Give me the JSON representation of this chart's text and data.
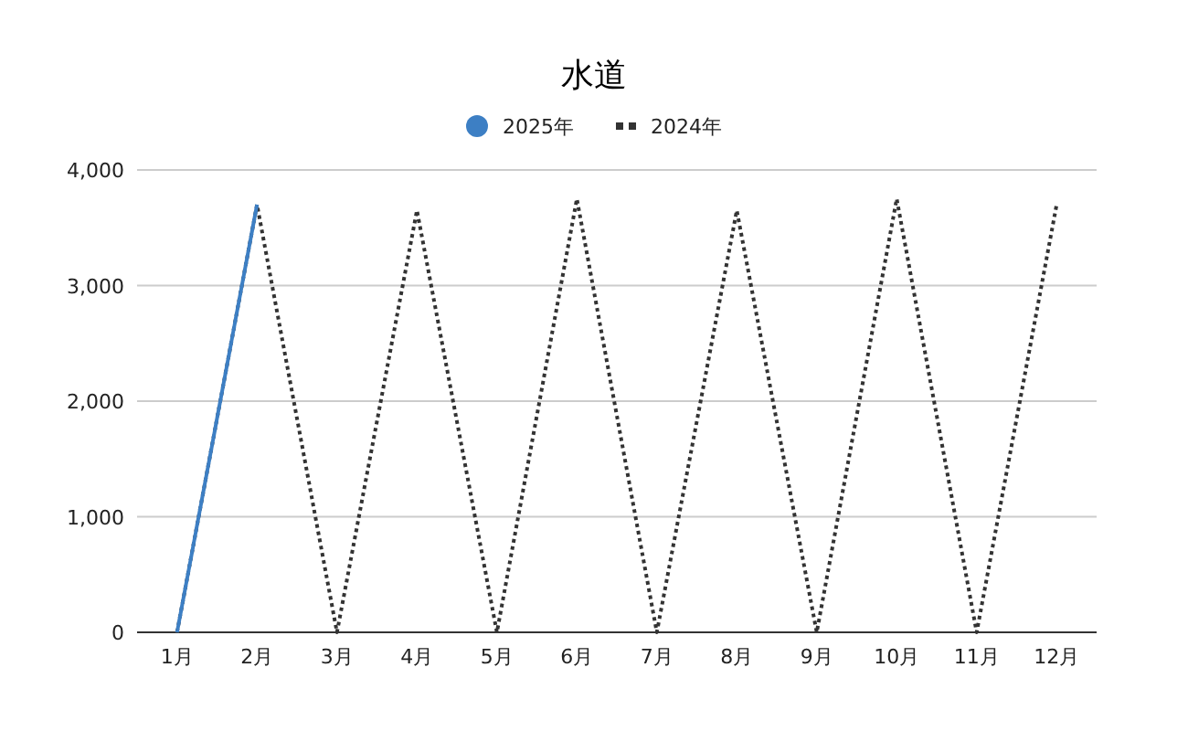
{
  "chart_data": {
    "type": "line",
    "title": "水道",
    "categories": [
      "1月",
      "2月",
      "3月",
      "4月",
      "5月",
      "6月",
      "7月",
      "8月",
      "9月",
      "10月",
      "11月",
      "12月"
    ],
    "series": [
      {
        "name": "2025年",
        "color": "#3d7fc4",
        "line_style": "solid",
        "values": [
          0,
          3700,
          null,
          null,
          null,
          null,
          null,
          null,
          null,
          null,
          null,
          null
        ]
      },
      {
        "name": "2024年",
        "color": "#333333",
        "line_style": "dotted",
        "values": [
          0,
          3700,
          0,
          3650,
          0,
          3750,
          0,
          3650,
          0,
          3750,
          0,
          3700
        ]
      }
    ],
    "ylim": [
      0,
      4000
    ],
    "yticks": [
      {
        "value": 0,
        "label": "0"
      },
      {
        "value": 1000,
        "label": "1,000"
      },
      {
        "value": 2000,
        "label": "2,000"
      },
      {
        "value": 3000,
        "label": "3,000"
      },
      {
        "value": 4000,
        "label": "4,000"
      }
    ],
    "grid": "y",
    "legend": "top",
    "marker": "none"
  }
}
